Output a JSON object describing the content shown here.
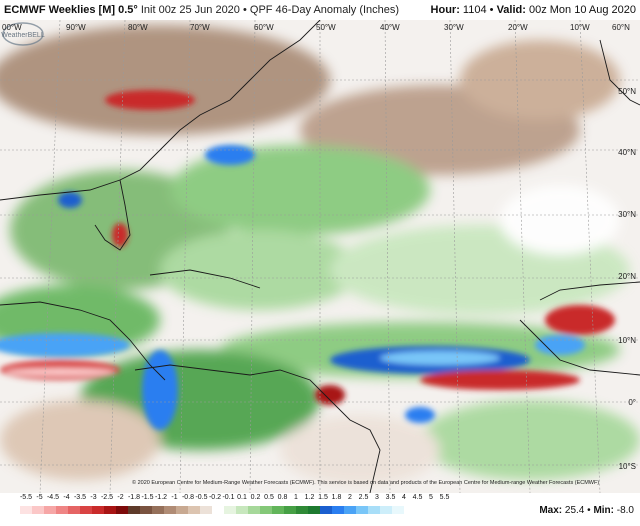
{
  "header": {
    "model": "ECMWF Weeklies [M] 0.5°",
    "subtitle": "Init 00z 25 Jun 2020 • QPF 46-Day Anomaly (Inches)",
    "hour_label": "Hour:",
    "hour": "1104",
    "valid_label": "Valid:",
    "valid": "00z Mon 10 Aug 2020"
  },
  "longitude_labels": [
    "00°W",
    "90°W",
    "80°W",
    "70°W",
    "60°W",
    "50°W",
    "40°W",
    "30°W",
    "20°W",
    "10°W",
    "60°N"
  ],
  "latitude_labels": [
    "50°N",
    "40°N",
    "30°N",
    "20°N",
    "10°N",
    "0°",
    "10°S"
  ],
  "copyright": "© 2020 European Centre for Medium-Range Weather Forecasts (ECMWF). This service is based on data and products of the European Centre for Medium-range Weather Forecasts (ECMWF)",
  "logo_text": "WeatherBELL",
  "legend": {
    "ticks": [
      "-5.5",
      "-5",
      "-4.5",
      "-4",
      "-3.5",
      "-3",
      "-2.5",
      "-2",
      "-1.8",
      "-1.5",
      "-1.2",
      "-1",
      "-0.8",
      "-0.5",
      "-0.2",
      "-0.1",
      "0.1",
      "0.2",
      "0.5",
      "0.8",
      "1",
      "1.2",
      "1.5",
      "1.8",
      "2",
      "2.5",
      "3",
      "3.5",
      "4",
      "4.5",
      "5",
      "5.5"
    ],
    "colors": [
      "#fde2e2",
      "#fbc7c7",
      "#f6a6a6",
      "#ef8585",
      "#e56464",
      "#d94343",
      "#c92a2a",
      "#a81414",
      "#7d0a0a",
      "#5e3a2a",
      "#7a5340",
      "#95705a",
      "#b08c75",
      "#c8a991",
      "#dcc4b0",
      "#ece1d8",
      "#ffffff",
      "#e6f4e0",
      "#c7e7bd",
      "#a6d89a",
      "#84c878",
      "#62b55a",
      "#46a045",
      "#2f8a36",
      "#1d7a30",
      "#1a5fcf",
      "#2a7ef0",
      "#4aa3f6",
      "#79c6f8",
      "#a8def8",
      "#cdeefa",
      "#e8f8fc"
    ]
  },
  "max_label": "Max:",
  "max": "25.4",
  "min_label": "Min:",
  "min": "-8.0",
  "colors": {
    "land_outline": "#1a1a1a",
    "grid": "#9a9a9a"
  }
}
